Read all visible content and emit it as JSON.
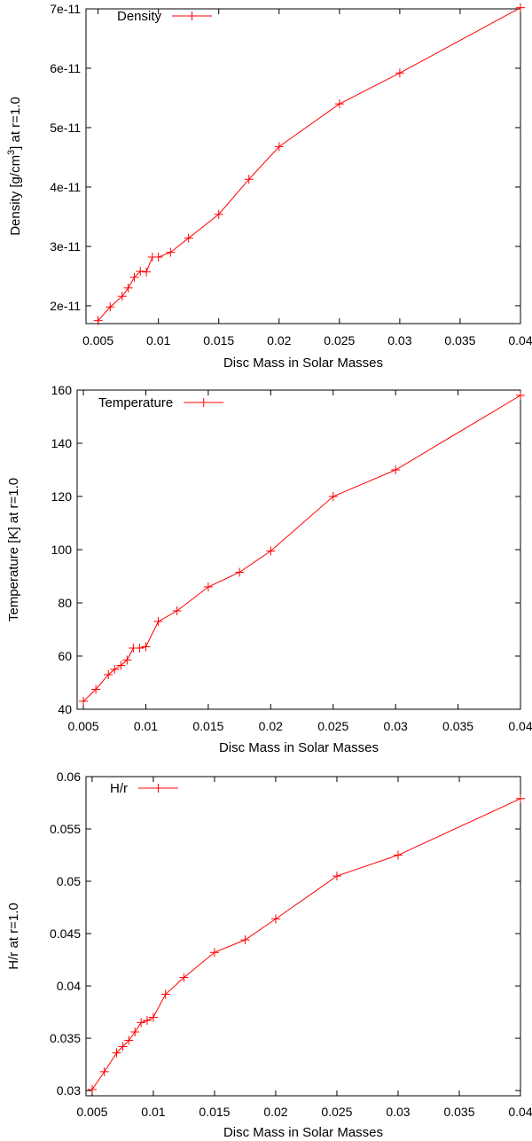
{
  "chart_data": [
    {
      "type": "line",
      "xlabel": "Disc Mass in Solar Masses",
      "ylabel": "Density [g/cm^3] at r=1.0",
      "ylabel_parts": {
        "main": "Density [g/cm",
        "sup": "3",
        "tail": "] at r=1.0"
      },
      "xlim": [
        0.004,
        0.04
      ],
      "ylim": [
        1.7e-11,
        7e-11
      ],
      "xticks": [
        0.005,
        0.01,
        0.015,
        0.02,
        0.025,
        0.03,
        0.035,
        0.04
      ],
      "xtick_labels": [
        "0.005",
        "0.01",
        "0.015",
        "0.02",
        "0.025",
        "0.03",
        "0.035",
        "0.04"
      ],
      "yticks": [
        2e-11,
        3e-11,
        4e-11,
        5e-11,
        6e-11,
        7e-11
      ],
      "ytick_labels": [
        "2e-11",
        "3e-11",
        "4e-11",
        "5e-11",
        "6e-11",
        "7e-11"
      ],
      "grid": false,
      "legend": "top-left",
      "color": "#ff0000",
      "series": [
        {
          "name": "Density",
          "x": [
            0.005,
            0.006,
            0.007,
            0.0075,
            0.008,
            0.0085,
            0.009,
            0.0095,
            0.01,
            0.011,
            0.0125,
            0.015,
            0.0175,
            0.02,
            0.025,
            0.03,
            0.04
          ],
          "y": [
            1.75e-11,
            1.98e-11,
            2.16e-11,
            2.3e-11,
            2.48e-11,
            2.58e-11,
            2.57e-11,
            2.82e-11,
            2.82e-11,
            2.9e-11,
            3.14e-11,
            3.54e-11,
            4.13e-11,
            4.68e-11,
            5.4e-11,
            5.92e-11,
            7.02e-11
          ]
        }
      ]
    },
    {
      "type": "line",
      "xlabel": "Disc Mass in Solar Masses",
      "ylabel": "Temperature [K] at r=1.0",
      "xlim": [
        0.0045,
        0.04
      ],
      "ylim": [
        40,
        160
      ],
      "xticks": [
        0.005,
        0.01,
        0.015,
        0.02,
        0.025,
        0.03,
        0.035,
        0.04
      ],
      "xtick_labels": [
        "0.005",
        "0.01",
        "0.015",
        "0.02",
        "0.025",
        "0.03",
        "0.035",
        "0.04"
      ],
      "yticks": [
        40,
        60,
        80,
        100,
        120,
        140,
        160
      ],
      "ytick_labels": [
        "40",
        "60",
        "80",
        "100",
        "120",
        "140",
        "160"
      ],
      "grid": false,
      "legend": "top-left",
      "color": "#ff0000",
      "series": [
        {
          "name": "Temperature",
          "x": [
            0.005,
            0.006,
            0.007,
            0.0075,
            0.008,
            0.0085,
            0.009,
            0.0095,
            0.01,
            0.011,
            0.0125,
            0.015,
            0.0175,
            0.02,
            0.025,
            0.03,
            0.04
          ],
          "y": [
            43,
            47.5,
            53,
            55,
            56.5,
            58.5,
            63,
            63,
            63.5,
            73,
            77,
            86,
            91.5,
            99.5,
            120,
            130,
            158
          ]
        }
      ]
    },
    {
      "type": "line",
      "xlabel": "Disc Mass in Solar Masses",
      "ylabel": "H/r at r=1.0",
      "xlim": [
        0.0045,
        0.04
      ],
      "ylim": [
        0.0295,
        0.06
      ],
      "xticks": [
        0.005,
        0.01,
        0.015,
        0.02,
        0.025,
        0.03,
        0.035,
        0.04
      ],
      "xtick_labels": [
        "0.005",
        "0.01",
        "0.015",
        "0.02",
        "0.025",
        "0.03",
        "0.035",
        "0.04"
      ],
      "yticks": [
        0.03,
        0.035,
        0.04,
        0.045,
        0.05,
        0.055,
        0.06
      ],
      "ytick_labels": [
        "0.03",
        "0.035",
        "0.04",
        "0.045",
        "0.05",
        "0.055",
        "0.06"
      ],
      "grid": false,
      "legend": "top-left",
      "color": "#ff0000",
      "series": [
        {
          "name": "H/r",
          "x": [
            0.005,
            0.006,
            0.007,
            0.0075,
            0.008,
            0.0085,
            0.009,
            0.0095,
            0.01,
            0.011,
            0.0125,
            0.015,
            0.0175,
            0.02,
            0.025,
            0.03,
            0.04
          ],
          "y": [
            0.0301,
            0.0318,
            0.0336,
            0.0342,
            0.0348,
            0.0356,
            0.0365,
            0.0367,
            0.037,
            0.0392,
            0.0408,
            0.0432,
            0.0444,
            0.0464,
            0.0505,
            0.0525,
            0.0579
          ]
        }
      ]
    }
  ]
}
